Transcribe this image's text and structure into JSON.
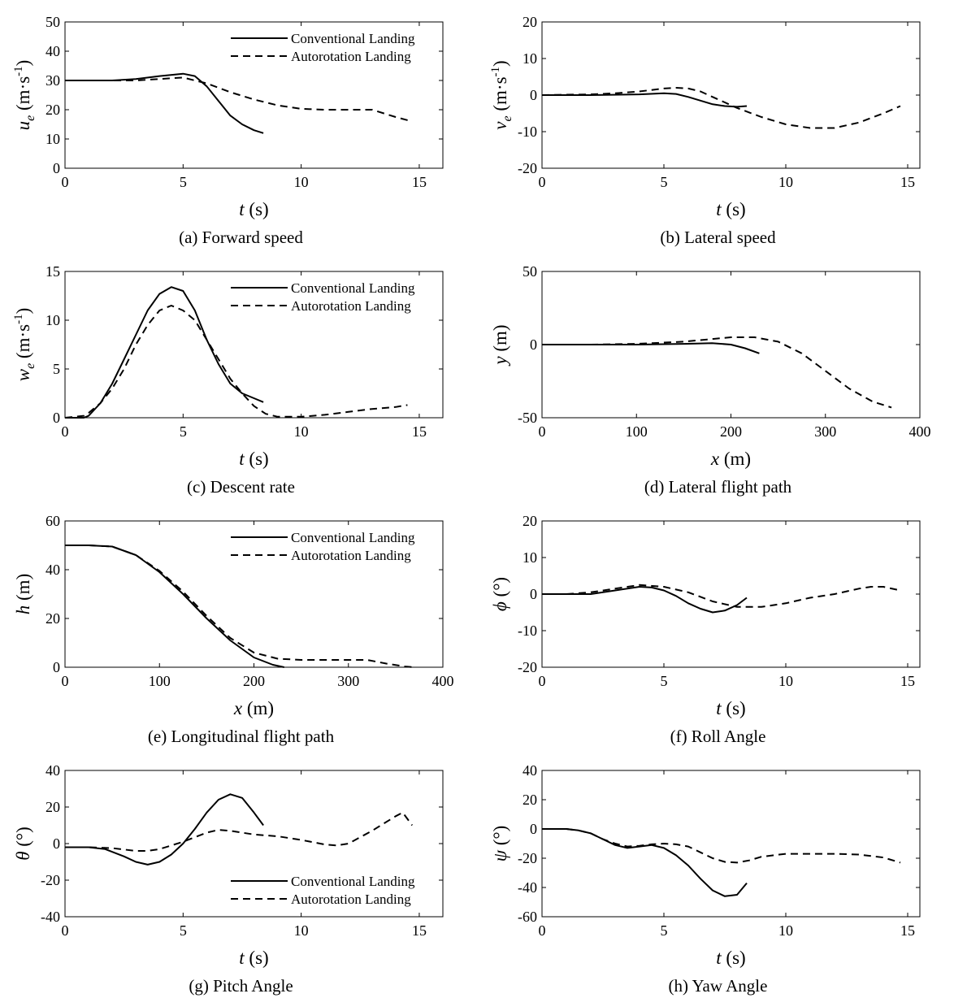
{
  "legend": {
    "conventional": "Conventional Landing",
    "autorotation": "Autorotation Landing"
  },
  "chart_data": [
    {
      "id": "a",
      "type": "line",
      "caption": "(a) Forward speed",
      "xlabel_var": "t",
      "xlabel_unit": " (s)",
      "ylabel_var": "u",
      "ylabel_sub": "e",
      "ylabel_unit": "(m·s",
      "ylabel_sup": "-1",
      "ylabel_close": ")",
      "xlim": [
        0,
        16
      ],
      "ylim": [
        0,
        50
      ],
      "xticks": [
        0,
        5,
        10,
        15
      ],
      "yticks": [
        0,
        10,
        20,
        30,
        40,
        50
      ],
      "legend": true,
      "series": [
        {
          "name": "Conventional Landing",
          "style": "solid",
          "x": [
            0,
            2,
            3,
            4,
            5,
            5.5,
            6,
            6.5,
            7,
            7.5,
            8,
            8.4
          ],
          "y": [
            30,
            30,
            30.5,
            31.5,
            32.3,
            31.5,
            28,
            23,
            18,
            15,
            13,
            12
          ]
        },
        {
          "name": "Autorotation Landing",
          "style": "dashed",
          "x": [
            0,
            2,
            3,
            4,
            5,
            6,
            7,
            8,
            9,
            10,
            11,
            12,
            13,
            14,
            14.7
          ],
          "y": [
            30,
            30,
            30,
            30.5,
            31,
            29,
            26,
            23.5,
            21.5,
            20.3,
            20,
            20,
            20,
            17.5,
            16
          ]
        }
      ]
    },
    {
      "id": "b",
      "type": "line",
      "caption": "(b) Lateral speed",
      "xlabel_var": "t",
      "xlabel_unit": " (s)",
      "ylabel_var": "v",
      "ylabel_sub": "e",
      "ylabel_unit": "(m·s",
      "ylabel_sup": "-1",
      "ylabel_close": ")",
      "xlim": [
        0,
        15.5
      ],
      "ylim": [
        -20,
        20
      ],
      "xticks": [
        0,
        5,
        10,
        15
      ],
      "yticks": [
        -20,
        -10,
        0,
        10,
        20
      ],
      "legend": false,
      "series": [
        {
          "name": "Conventional Landing",
          "style": "solid",
          "x": [
            0,
            2,
            4,
            5,
            5.5,
            6,
            6.5,
            7,
            7.5,
            8,
            8.4
          ],
          "y": [
            0,
            0,
            0.2,
            0.5,
            0.3,
            -0.5,
            -1.5,
            -2.5,
            -3,
            -3.2,
            -3
          ]
        },
        {
          "name": "Autorotation Landing",
          "style": "dashed",
          "x": [
            0,
            2,
            3,
            4,
            5,
            5.5,
            6,
            6.5,
            7,
            7.5,
            8,
            9,
            10,
            11,
            12,
            13,
            14,
            14.7
          ],
          "y": [
            0,
            0.2,
            0.5,
            1,
            1.8,
            2,
            1.8,
            1,
            -0.5,
            -2,
            -3.5,
            -6,
            -8,
            -9,
            -9,
            -7.5,
            -5,
            -3
          ]
        }
      ]
    },
    {
      "id": "c",
      "type": "line",
      "caption": "(c) Descent rate",
      "xlabel_var": "t",
      "xlabel_unit": " (s)",
      "ylabel_var": "w",
      "ylabel_sub": "e",
      "ylabel_unit": "(m·s",
      "ylabel_sup": "-1",
      "ylabel_close": ")",
      "xlim": [
        0,
        16
      ],
      "ylim": [
        0,
        15
      ],
      "xticks": [
        0,
        5,
        10,
        15
      ],
      "yticks": [
        0,
        5,
        10,
        15
      ],
      "legend": true,
      "series": [
        {
          "name": "Conventional Landing",
          "style": "solid",
          "x": [
            0,
            0.8,
            1,
            1.5,
            2,
            2.5,
            3,
            3.5,
            4,
            4.5,
            5,
            5.5,
            6,
            6.5,
            7,
            7.5,
            8,
            8.4
          ],
          "y": [
            0,
            0,
            0.2,
            1.5,
            3.5,
            6,
            8.5,
            11,
            12.7,
            13.4,
            13,
            11,
            8,
            5.5,
            3.5,
            2.5,
            2,
            1.6
          ]
        },
        {
          "name": "Autorotation Landing",
          "style": "dashed",
          "x": [
            0,
            0.8,
            1,
            1.5,
            2,
            2.5,
            3,
            3.5,
            4,
            4.5,
            5,
            5.5,
            6,
            6.5,
            7,
            7.5,
            8,
            8.5,
            9,
            10,
            11,
            12,
            13,
            14,
            14.5
          ],
          "y": [
            0,
            0.2,
            0.5,
            1.5,
            3,
            5,
            7.5,
            9.5,
            11,
            11.5,
            11,
            10,
            8,
            6,
            4,
            2.5,
            1.2,
            0.4,
            0.1,
            0.1,
            0.3,
            0.6,
            0.9,
            1.1,
            1.3
          ]
        }
      ]
    },
    {
      "id": "d",
      "type": "line",
      "caption": "(d) Lateral flight path",
      "xlabel_var": "x",
      "xlabel_unit": " (m)",
      "ylabel_var": "y",
      "ylabel_sub": "",
      "ylabel_unit": " (m)",
      "ylabel_sup": "",
      "ylabel_close": "",
      "xlim": [
        0,
        400
      ],
      "ylim": [
        -50,
        50
      ],
      "xticks": [
        0,
        100,
        200,
        300,
        400
      ],
      "yticks": [
        -50,
        0,
        50
      ],
      "legend": false,
      "series": [
        {
          "name": "Conventional Landing",
          "style": "solid",
          "x": [
            0,
            50,
            100,
            150,
            180,
            200,
            215,
            230
          ],
          "y": [
            0,
            0,
            0,
            0.5,
            1,
            0,
            -2.5,
            -6
          ]
        },
        {
          "name": "Autorotation Landing",
          "style": "dashed",
          "x": [
            0,
            50,
            100,
            150,
            175,
            200,
            225,
            250,
            275,
            300,
            325,
            350,
            370
          ],
          "y": [
            0,
            0,
            0.5,
            2,
            3.5,
            5,
            5,
            2,
            -6,
            -18,
            -30,
            -39,
            -43
          ]
        }
      ]
    },
    {
      "id": "e",
      "type": "line",
      "caption": "(e) Longitudinal flight path",
      "xlabel_var": "x",
      "xlabel_unit": " (m)",
      "ylabel_var": "h",
      "ylabel_sub": "",
      "ylabel_unit": " (m)",
      "ylabel_sup": "",
      "ylabel_close": "",
      "xlim": [
        0,
        400
      ],
      "ylim": [
        0,
        60
      ],
      "xticks": [
        0,
        100,
        200,
        300,
        400
      ],
      "yticks": [
        0,
        20,
        40,
        60
      ],
      "legend": true,
      "series": [
        {
          "name": "Conventional Landing",
          "style": "solid",
          "x": [
            0,
            25,
            50,
            75,
            100,
            125,
            150,
            175,
            200,
            220,
            232
          ],
          "y": [
            50,
            50,
            49.5,
            46,
            39,
            30,
            20,
            11,
            4,
            1,
            0
          ]
        },
        {
          "name": "Autorotation Landing",
          "style": "dashed",
          "x": [
            0,
            25,
            50,
            75,
            100,
            125,
            150,
            175,
            200,
            225,
            250,
            275,
            300,
            320,
            340,
            360,
            370
          ],
          "y": [
            50,
            50,
            49.5,
            46,
            39.5,
            31,
            21,
            12,
            6,
            3.5,
            3,
            3,
            3,
            3,
            1.5,
            0.3,
            0
          ]
        }
      ]
    },
    {
      "id": "f",
      "type": "line",
      "caption": "(f) Roll Angle",
      "xlabel_var": "t",
      "xlabel_unit": " (s)",
      "ylabel_var": "ϕ",
      "ylabel_sub": "",
      "ylabel_unit": " (°)",
      "ylabel_sup": "",
      "ylabel_close": "",
      "xlim": [
        0,
        15.5
      ],
      "ylim": [
        -20,
        20
      ],
      "xticks": [
        0,
        5,
        10,
        15
      ],
      "yticks": [
        -20,
        -10,
        0,
        10,
        20
      ],
      "legend": false,
      "series": [
        {
          "name": "Conventional Landing",
          "style": "solid",
          "x": [
            0,
            1,
            2,
            3,
            4,
            4.5,
            5,
            5.5,
            6,
            6.5,
            7,
            7.5,
            8,
            8.4
          ],
          "y": [
            0,
            0,
            0,
            1,
            2,
            1.8,
            1,
            -0.5,
            -2.5,
            -4,
            -5,
            -4.5,
            -3,
            -1
          ]
        },
        {
          "name": "Autorotation Landing",
          "style": "dashed",
          "x": [
            0,
            1,
            2,
            3,
            4,
            5,
            6,
            7,
            8,
            9,
            10,
            11,
            12,
            13,
            13.5,
            14,
            14.7
          ],
          "y": [
            0,
            0,
            0.5,
            1.5,
            2.5,
            2,
            0.5,
            -2,
            -3.5,
            -3.5,
            -2.5,
            -1,
            0,
            1.5,
            2,
            2,
            1
          ]
        }
      ]
    },
    {
      "id": "g",
      "type": "line",
      "caption": "(g) Pitch Angle",
      "xlabel_var": "t",
      "xlabel_unit": " (s)",
      "ylabel_var": "θ",
      "ylabel_sub": "",
      "ylabel_unit": " (°)",
      "ylabel_sup": "",
      "ylabel_close": "",
      "xlim": [
        0,
        16
      ],
      "ylim": [
        -40,
        40
      ],
      "xticks": [
        0,
        5,
        10,
        15
      ],
      "yticks": [
        -40,
        -20,
        0,
        20,
        40
      ],
      "legend": true,
      "legend_pos": "bottom",
      "series": [
        {
          "name": "Conventional Landing",
          "style": "solid",
          "x": [
            0,
            1,
            1.7,
            2.5,
            3,
            3.5,
            4,
            4.5,
            5,
            5.5,
            6,
            6.5,
            7,
            7.5,
            8,
            8.4
          ],
          "y": [
            -2,
            -2,
            -3,
            -7,
            -10,
            -11.5,
            -10,
            -6,
            0,
            8,
            17,
            24,
            27,
            25,
            17,
            10
          ]
        },
        {
          "name": "Autorotation Landing",
          "style": "dashed",
          "x": [
            0,
            1,
            2,
            3,
            3.5,
            4,
            5,
            6,
            6.5,
            7,
            8,
            9,
            10,
            11,
            11.5,
            12,
            13,
            13.5,
            14,
            14.3,
            14.7
          ],
          "y": [
            -2,
            -2,
            -2.5,
            -4,
            -4,
            -3,
            1,
            6,
            7.5,
            7,
            5,
            4,
            2,
            -0.5,
            -1,
            0,
            7,
            11,
            15,
            17,
            10
          ]
        }
      ]
    },
    {
      "id": "h",
      "type": "line",
      "caption": "(h) Yaw Angle",
      "xlabel_var": "t",
      "xlabel_unit": " (s)",
      "ylabel_var": "ψ",
      "ylabel_sub": "",
      "ylabel_unit": " (°)",
      "ylabel_sup": "",
      "ylabel_close": "",
      "xlim": [
        0,
        15.5
      ],
      "ylim": [
        -60,
        40
      ],
      "xticks": [
        0,
        5,
        10,
        15
      ],
      "yticks": [
        -60,
        -40,
        -20,
        0,
        20,
        40
      ],
      "legend": false,
      "series": [
        {
          "name": "Conventional Landing",
          "style": "solid",
          "x": [
            0,
            1,
            1.5,
            2,
            2.5,
            3,
            3.5,
            4,
            4.5,
            5,
            5.5,
            6,
            6.5,
            7,
            7.5,
            8,
            8.4
          ],
          "y": [
            0,
            0,
            -1,
            -3,
            -7,
            -11,
            -13,
            -12,
            -11,
            -13,
            -18,
            -25,
            -34,
            -42,
            -46,
            -45,
            -37
          ]
        },
        {
          "name": "Autorotation Landing",
          "style": "dashed",
          "x": [
            0,
            1,
            1.5,
            2,
            2.5,
            3,
            3.5,
            4,
            4.5,
            5,
            5.5,
            6,
            6.5,
            7,
            7.5,
            8,
            8.5,
            9,
            10,
            11,
            12,
            13,
            14,
            14.7
          ],
          "y": [
            0,
            0,
            -1,
            -3,
            -7,
            -10,
            -12,
            -11.5,
            -10.5,
            -10,
            -10.5,
            -12,
            -16,
            -20,
            -22.5,
            -23,
            -21.5,
            -19,
            -17,
            -17,
            -17,
            -17.5,
            -19.5,
            -23
          ]
        }
      ]
    }
  ]
}
